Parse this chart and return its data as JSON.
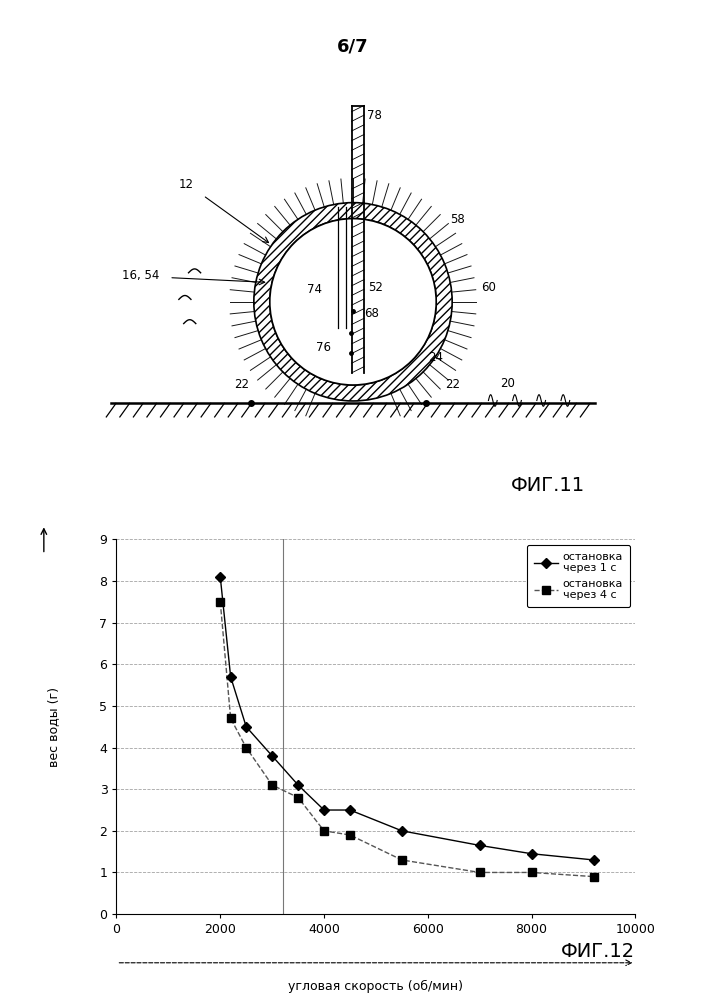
{
  "page_label": "6/7",
  "fig11_label": "ФИГ.11",
  "fig12_label": "ФИГ.12",
  "series1_label": "остановка\nчерез 1 с",
  "series2_label": "остановка\nчерез 4 с",
  "series1_x": [
    2000,
    2200,
    2500,
    3000,
    3500,
    4000,
    4500,
    5500,
    7000,
    8000,
    9200
  ],
  "series1_y": [
    8.1,
    5.7,
    4.5,
    3.8,
    3.1,
    2.5,
    2.5,
    2.0,
    1.65,
    1.45,
    1.3
  ],
  "series2_x": [
    2000,
    2200,
    2500,
    3000,
    3500,
    4000,
    4500,
    5500,
    7000,
    8000,
    9200
  ],
  "series2_y": [
    7.5,
    4.7,
    4.0,
    3.1,
    2.8,
    2.0,
    1.9,
    1.3,
    1.0,
    1.0,
    0.9
  ],
  "xlabel": "угловая скорость (об/мин)",
  "ylabel": "вес воды (г)",
  "xlim": [
    0,
    10000
  ],
  "ylim": [
    0,
    9
  ],
  "xticks": [
    0,
    2000,
    4000,
    6000,
    8000,
    10000
  ],
  "yticks": [
    0,
    1,
    2,
    3,
    4,
    5,
    6,
    7,
    8,
    9
  ],
  "vline_x": 3200,
  "background_color": "#ffffff",
  "grid_color": "#999999",
  "line1_color": "#000000",
  "line2_color": "#555555"
}
